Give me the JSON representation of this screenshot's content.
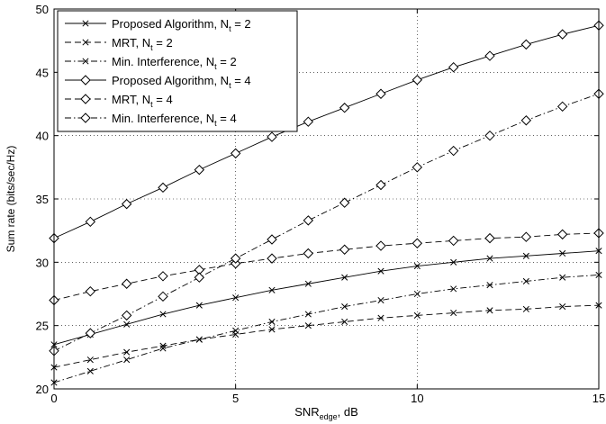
{
  "chart_data": {
    "type": "line",
    "xlabel": "SNR",
    "xlabel_sub": "edge",
    "xlabel_suffix": ", dB",
    "ylabel": "Sum rate (bits/sec/Hz)",
    "xlim": [
      0,
      15
    ],
    "ylim": [
      20,
      50
    ],
    "xticks": [
      0,
      5,
      10,
      15
    ],
    "yticks": [
      20,
      25,
      30,
      35,
      40,
      45,
      50
    ],
    "grid": true,
    "legend_position": "top-left",
    "x": [
      0,
      1,
      2,
      3,
      4,
      5,
      6,
      7,
      8,
      9,
      10,
      11,
      12,
      13,
      14,
      15
    ],
    "series": [
      {
        "name": "Proposed Algorithm, N",
        "sub": "t",
        "suffix": " = 2",
        "marker": "x",
        "dash": "solid",
        "values": [
          23.5,
          24.3,
          25.1,
          25.9,
          26.6,
          27.2,
          27.8,
          28.3,
          28.8,
          29.3,
          29.7,
          30.0,
          30.3,
          30.5,
          30.7,
          30.9
        ]
      },
      {
        "name": "MRT, N",
        "sub": "t",
        "suffix": " = 2",
        "marker": "x",
        "dash": "dashed",
        "values": [
          21.7,
          22.3,
          22.9,
          23.4,
          23.9,
          24.3,
          24.7,
          25.0,
          25.3,
          25.6,
          25.8,
          26.0,
          26.2,
          26.3,
          26.5,
          26.6
        ]
      },
      {
        "name": "Min. Interference, N",
        "sub": "t",
        "suffix": " = 2",
        "marker": "x",
        "dash": "dashdot",
        "values": [
          20.5,
          21.4,
          22.3,
          23.2,
          23.9,
          24.6,
          25.3,
          25.9,
          26.5,
          27.0,
          27.5,
          27.9,
          28.2,
          28.5,
          28.8,
          29.0
        ]
      },
      {
        "name": "Proposed Algorithm, N",
        "sub": "t",
        "suffix": " = 4",
        "marker": "diamond",
        "dash": "solid",
        "values": [
          31.9,
          33.2,
          34.6,
          35.9,
          37.3,
          38.6,
          39.9,
          41.1,
          42.2,
          43.3,
          44.4,
          45.4,
          46.3,
          47.2,
          48.0,
          48.7
        ]
      },
      {
        "name": "MRT, N",
        "sub": "t",
        "suffix": " = 4",
        "marker": "diamond",
        "dash": "dashed",
        "values": [
          27.0,
          27.7,
          28.3,
          28.9,
          29.4,
          29.9,
          30.3,
          30.7,
          31.0,
          31.3,
          31.5,
          31.7,
          31.9,
          32.0,
          32.2,
          32.3
        ]
      },
      {
        "name": "Min. Interference, N",
        "sub": "t",
        "suffix": " = 4",
        "marker": "diamond",
        "dash": "dashdot",
        "values": [
          23.0,
          24.4,
          25.8,
          27.3,
          28.8,
          30.3,
          31.8,
          33.3,
          34.7,
          36.1,
          37.5,
          38.8,
          40.0,
          41.2,
          42.3,
          43.3
        ]
      }
    ]
  }
}
